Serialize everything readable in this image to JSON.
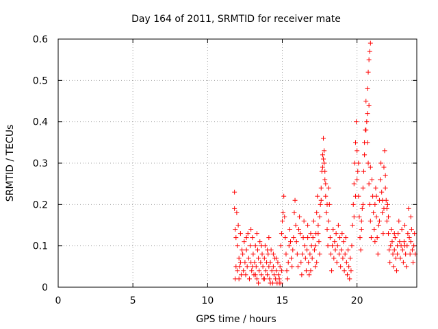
{
  "chart_data": {
    "type": "scatter",
    "title": "Day 164 of 2011, SRMTID for receiver mate",
    "xlabel": "GPS time / hours",
    "ylabel": "SRMTID / TECUs",
    "xlim": [
      0,
      24
    ],
    "ylim": [
      0,
      0.6
    ],
    "x_ticks": [
      0,
      5,
      10,
      15,
      20
    ],
    "x_tick_labels": [
      "0",
      "5",
      "10",
      "15",
      "20"
    ],
    "y_ticks": [
      0,
      0.1,
      0.2,
      0.3,
      0.4,
      0.5,
      0.6
    ],
    "y_tick_labels": [
      "0",
      "0.1",
      "0.2",
      "0.3",
      "0.4",
      "0.5",
      "0.6"
    ],
    "grid": true,
    "marker": "+",
    "marker_color": "#ff0000",
    "series": [
      {
        "name": "SRMTID",
        "points": [
          [
            11.8,
            0.23
          ],
          [
            11.8,
            0.19
          ],
          [
            11.85,
            0.14
          ],
          [
            11.9,
            0.12
          ],
          [
            11.95,
            0.18
          ],
          [
            12.0,
            0.1
          ],
          [
            12.05,
            0.15
          ],
          [
            12.1,
            0.07
          ],
          [
            12.15,
            0.05
          ],
          [
            12.2,
            0.13
          ],
          [
            12.25,
            0.03
          ],
          [
            12.3,
            0.09
          ],
          [
            11.85,
            0.02
          ],
          [
            11.9,
            0.05
          ],
          [
            12.0,
            0.04
          ],
          [
            12.1,
            0.02
          ],
          [
            12.2,
            0.06
          ],
          [
            12.35,
            0.08
          ],
          [
            12.4,
            0.04
          ],
          [
            12.45,
            0.11
          ],
          [
            12.5,
            0.06
          ],
          [
            12.55,
            0.03
          ],
          [
            12.6,
            0.09
          ],
          [
            12.65,
            0.05
          ],
          [
            12.7,
            0.13
          ],
          [
            12.75,
            0.07
          ],
          [
            12.8,
            0.02
          ],
          [
            12.85,
            0.1
          ],
          [
            12.9,
            0.06
          ],
          [
            12.95,
            0.04
          ],
          [
            13.0,
            0.12
          ],
          [
            13.05,
            0.08
          ],
          [
            13.1,
            0.03
          ],
          [
            13.15,
            0.06
          ],
          [
            13.2,
            0.1
          ],
          [
            13.25,
            0.05
          ],
          [
            13.3,
            0.02
          ],
          [
            13.35,
            0.09
          ],
          [
            13.4,
            0.07
          ],
          [
            13.45,
            0.04
          ],
          [
            13.5,
            0.11
          ],
          [
            13.55,
            0.06
          ],
          [
            13.6,
            0.03
          ],
          [
            13.65,
            0.08
          ],
          [
            13.7,
            0.05
          ],
          [
            13.75,
            0.02
          ],
          [
            13.8,
            0.07
          ],
          [
            13.85,
            0.1
          ],
          [
            13.9,
            0.04
          ],
          [
            13.95,
            0.06
          ],
          [
            14.0,
            0.03
          ],
          [
            14.05,
            0.08
          ],
          [
            14.1,
            0.05
          ],
          [
            14.15,
            0.02
          ],
          [
            14.2,
            0.06
          ],
          [
            14.25,
            0.09
          ],
          [
            14.3,
            0.04
          ],
          [
            14.35,
            0.01
          ],
          [
            14.4,
            0.05
          ],
          [
            14.45,
            0.03
          ],
          [
            14.5,
            0.07
          ],
          [
            14.55,
            0.02
          ],
          [
            14.6,
            0.04
          ],
          [
            14.65,
            0.01
          ],
          [
            14.7,
            0.06
          ],
          [
            14.75,
            0.03
          ],
          [
            14.8,
            0.02
          ],
          [
            14.85,
            0.05
          ],
          [
            14.9,
            0.01
          ],
          [
            14.95,
            0.04
          ],
          [
            13.0,
            0.05
          ],
          [
            13.2,
            0.03
          ],
          [
            13.4,
            0.01
          ],
          [
            13.6,
            0.1
          ],
          [
            13.8,
            0.02
          ],
          [
            14.0,
            0.09
          ],
          [
            14.2,
            0.01
          ],
          [
            14.4,
            0.08
          ],
          [
            14.6,
            0.07
          ],
          [
            14.8,
            0.01
          ],
          [
            12.6,
            0.12
          ],
          [
            12.9,
            0.14
          ],
          [
            13.3,
            0.13
          ],
          [
            14.1,
            0.12
          ],
          [
            14.9,
            0.1
          ],
          [
            14.95,
            0.13
          ],
          [
            15.0,
            0.16
          ],
          [
            15.05,
            0.18
          ],
          [
            15.1,
            0.22
          ],
          [
            15.15,
            0.17
          ],
          [
            15.2,
            0.12
          ],
          [
            15.25,
            0.08
          ],
          [
            15.3,
            0.04
          ],
          [
            15.35,
            0.02
          ],
          [
            15.4,
            0.06
          ],
          [
            15.45,
            0.1
          ],
          [
            15.5,
            0.14
          ],
          [
            15.55,
            0.11
          ],
          [
            15.6,
            0.07
          ],
          [
            15.65,
            0.05
          ],
          [
            15.7,
            0.09
          ],
          [
            15.75,
            0.12
          ],
          [
            15.8,
            0.18
          ],
          [
            15.85,
            0.21
          ],
          [
            15.9,
            0.15
          ],
          [
            15.95,
            0.11
          ],
          [
            16.0,
            0.08
          ],
          [
            16.05,
            0.05
          ],
          [
            16.1,
            0.14
          ],
          [
            16.15,
            0.17
          ],
          [
            16.2,
            0.13
          ],
          [
            16.25,
            0.06
          ],
          [
            16.3,
            0.03
          ],
          [
            16.35,
            0.08
          ],
          [
            16.4,
            0.12
          ],
          [
            16.45,
            0.16
          ],
          [
            16.5,
            0.1
          ],
          [
            16.55,
            0.07
          ],
          [
            16.6,
            0.04
          ],
          [
            16.65,
            0.09
          ],
          [
            16.7,
            0.12
          ],
          [
            16.75,
            0.06
          ],
          [
            16.8,
            0.03
          ],
          [
            16.85,
            0.08
          ],
          [
            16.9,
            0.13
          ],
          [
            16.95,
            0.1
          ],
          [
            17.0,
            0.07
          ],
          [
            17.05,
            0.12
          ],
          [
            17.1,
            0.16
          ],
          [
            17.15,
            0.09
          ],
          [
            17.2,
            0.05
          ],
          [
            17.25,
            0.13
          ],
          [
            17.3,
            0.18
          ],
          [
            17.35,
            0.22
          ],
          [
            17.4,
            0.15
          ],
          [
            17.45,
            0.11
          ],
          [
            17.5,
            0.08
          ],
          [
            17.55,
            0.2
          ],
          [
            17.6,
            0.24
          ],
          [
            17.65,
            0.28
          ],
          [
            17.7,
            0.32
          ],
          [
            17.75,
            0.36
          ],
          [
            17.8,
            0.3
          ],
          [
            17.85,
            0.26
          ],
          [
            17.9,
            0.22
          ],
          [
            17.95,
            0.18
          ],
          [
            18.0,
            0.14
          ],
          [
            18.05,
            0.1
          ],
          [
            18.1,
            0.16
          ],
          [
            18.15,
            0.2
          ],
          [
            18.2,
            0.12
          ],
          [
            18.25,
            0.08
          ],
          [
            18.3,
            0.04
          ],
          [
            18.35,
            0.1
          ],
          [
            18.4,
            0.14
          ],
          [
            18.45,
            0.07
          ],
          [
            18.5,
            0.11
          ],
          [
            18.55,
            0.09
          ],
          [
            18.6,
            0.13
          ],
          [
            18.65,
            0.06
          ],
          [
            18.7,
            0.1
          ],
          [
            18.75,
            0.15
          ],
          [
            18.8,
            0.08
          ],
          [
            18.85,
            0.12
          ],
          [
            18.9,
            0.05
          ],
          [
            18.95,
            0.09
          ],
          [
            17.7,
            0.29
          ],
          [
            17.75,
            0.31
          ],
          [
            17.8,
            0.33
          ],
          [
            17.85,
            0.28
          ],
          [
            17.9,
            0.25
          ],
          [
            17.6,
            0.21
          ],
          [
            17.5,
            0.17
          ],
          [
            17.4,
            0.13
          ],
          [
            18.0,
            0.2
          ],
          [
            18.1,
            0.24
          ],
          [
            17.2,
            0.1
          ],
          [
            17.3,
            0.06
          ],
          [
            16.9,
            0.04
          ],
          [
            16.7,
            0.15
          ],
          [
            19.0,
            0.13
          ],
          [
            19.05,
            0.07
          ],
          [
            19.1,
            0.11
          ],
          [
            19.15,
            0.04
          ],
          [
            19.2,
            0.08
          ],
          [
            19.25,
            0.12
          ],
          [
            19.3,
            0.06
          ],
          [
            19.35,
            0.03
          ],
          [
            19.4,
            0.09
          ],
          [
            19.45,
            0.05
          ],
          [
            19.5,
            0.02
          ],
          [
            19.55,
            0.07
          ],
          [
            19.6,
            0.04
          ],
          [
            19.65,
            0.1
          ],
          [
            19.7,
            0.15
          ],
          [
            19.75,
            0.2
          ],
          [
            19.8,
            0.25
          ],
          [
            19.85,
            0.3
          ],
          [
            19.9,
            0.35
          ],
          [
            19.95,
            0.4
          ],
          [
            20.0,
            0.33
          ],
          [
            20.05,
            0.28
          ],
          [
            20.1,
            0.22
          ],
          [
            20.15,
            0.17
          ],
          [
            20.2,
            0.12
          ],
          [
            20.25,
            0.09
          ],
          [
            20.3,
            0.14
          ],
          [
            20.35,
            0.19
          ],
          [
            20.4,
            0.24
          ],
          [
            20.45,
            0.28
          ],
          [
            20.5,
            0.32
          ],
          [
            20.55,
            0.38
          ],
          [
            20.6,
            0.45
          ],
          [
            20.65,
            0.4
          ],
          [
            20.7,
            0.35
          ],
          [
            20.75,
            0.3
          ],
          [
            20.8,
            0.25
          ],
          [
            20.85,
            0.2
          ],
          [
            20.9,
            0.16
          ],
          [
            20.95,
            0.12
          ],
          [
            20.7,
            0.48
          ],
          [
            20.75,
            0.52
          ],
          [
            20.8,
            0.55
          ],
          [
            20.85,
            0.57
          ],
          [
            20.9,
            0.59
          ],
          [
            20.8,
            0.44
          ],
          [
            20.7,
            0.42
          ],
          [
            20.6,
            0.38
          ],
          [
            20.5,
            0.35
          ],
          [
            20.9,
            0.29
          ],
          [
            20.4,
            0.2
          ],
          [
            20.3,
            0.16
          ],
          [
            19.8,
            0.17
          ],
          [
            19.9,
            0.22
          ],
          [
            20.0,
            0.26
          ],
          [
            20.1,
            0.3
          ],
          [
            21.0,
            0.26
          ],
          [
            21.05,
            0.22
          ],
          [
            21.1,
            0.18
          ],
          [
            21.15,
            0.14
          ],
          [
            21.2,
            0.2
          ],
          [
            21.25,
            0.24
          ],
          [
            21.3,
            0.17
          ],
          [
            21.35,
            0.12
          ],
          [
            21.4,
            0.08
          ],
          [
            21.45,
            0.15
          ],
          [
            21.5,
            0.21
          ],
          [
            21.55,
            0.26
          ],
          [
            21.6,
            0.3
          ],
          [
            21.65,
            0.23
          ],
          [
            21.7,
            0.18
          ],
          [
            21.75,
            0.13
          ],
          [
            21.8,
            0.19
          ],
          [
            21.85,
            0.33
          ],
          [
            21.9,
            0.27
          ],
          [
            21.95,
            0.21
          ],
          [
            22.0,
            0.16
          ],
          [
            22.05,
            0.2
          ],
          [
            22.1,
            0.13
          ],
          [
            22.15,
            0.09
          ],
          [
            22.2,
            0.06
          ],
          [
            22.25,
            0.1
          ],
          [
            22.3,
            0.14
          ],
          [
            22.35,
            0.11
          ],
          [
            22.4,
            0.08
          ],
          [
            22.45,
            0.05
          ],
          [
            22.5,
            0.09
          ],
          [
            22.55,
            0.12
          ],
          [
            22.6,
            0.07
          ],
          [
            22.65,
            0.04
          ],
          [
            22.7,
            0.08
          ],
          [
            22.75,
            0.13
          ],
          [
            22.8,
            0.16
          ],
          [
            22.85,
            0.11
          ],
          [
            22.9,
            0.07
          ],
          [
            22.95,
            0.1
          ],
          [
            23.0,
            0.14
          ],
          [
            23.05,
            0.09
          ],
          [
            23.1,
            0.06
          ],
          [
            23.15,
            0.11
          ],
          [
            23.2,
            0.15
          ],
          [
            23.25,
            0.08
          ],
          [
            23.3,
            0.05
          ],
          [
            23.35,
            0.1
          ],
          [
            23.4,
            0.13
          ],
          [
            23.45,
            0.19
          ],
          [
            23.5,
            0.12
          ],
          [
            23.55,
            0.08
          ],
          [
            23.6,
            0.11
          ],
          [
            23.65,
            0.14
          ],
          [
            23.7,
            0.09
          ],
          [
            23.75,
            0.06
          ],
          [
            23.8,
            0.1
          ],
          [
            23.85,
            0.13
          ],
          [
            23.9,
            0.08
          ],
          [
            21.9,
            0.24
          ],
          [
            21.8,
            0.29
          ],
          [
            21.7,
            0.21
          ],
          [
            22.0,
            0.19
          ],
          [
            22.1,
            0.17
          ],
          [
            21.5,
            0.16
          ],
          [
            21.3,
            0.22
          ],
          [
            21.2,
            0.11
          ],
          [
            22.5,
            0.13
          ],
          [
            22.7,
            0.1
          ],
          [
            23.2,
            0.1
          ],
          [
            23.6,
            0.17
          ]
        ]
      }
    ]
  }
}
